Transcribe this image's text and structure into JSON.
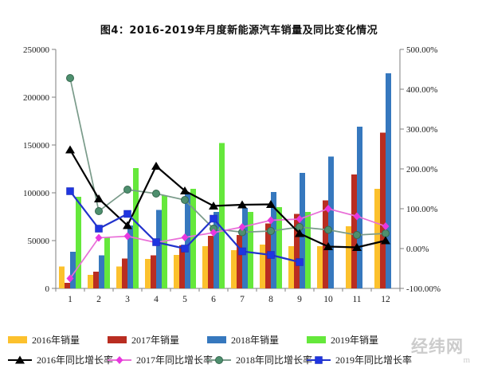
{
  "watermark": {
    "text": "经纬网",
    "suffix": "m"
  },
  "chart_data": {
    "type": "bar",
    "subtype": "grouped-bars-with-lines",
    "title": "图4：2016-2019年月度新能源汽车销量及同比变化情况",
    "categories": [
      "1",
      "2",
      "3",
      "4",
      "5",
      "6",
      "7",
      "8",
      "9",
      "10",
      "11",
      "12"
    ],
    "bar_series": [
      {
        "name": "2016年销量",
        "color": "#FCC12D",
        "values": [
          23000,
          14000,
          23000,
          31000,
          35000,
          44000,
          40000,
          46000,
          44000,
          44000,
          65000,
          104000
        ]
      },
      {
        "name": "2017年销量",
        "color": "#B92D21",
        "values": [
          5700,
          17600,
          31100,
          34400,
          45100,
          55000,
          56000,
          68000,
          78000,
          92000,
          119000,
          163000
        ]
      },
      {
        "name": "2018年销量",
        "color": "#3678BE",
        "values": [
          38500,
          34400,
          66000,
          82000,
          100000,
          80000,
          84000,
          101000,
          121000,
          138000,
          169000,
          225000
        ]
      },
      {
        "name": "2019年销量",
        "color": "#65E83B",
        "values": [
          95700,
          52900,
          126000,
          97000,
          104000,
          152000,
          80000,
          85000,
          80000,
          null,
          null,
          null
        ]
      }
    ],
    "line_series": [
      {
        "name": "2016年同比增长率",
        "color": "#000000",
        "line_color": "#000000",
        "marker": "triangle",
        "values": [
          248,
          125,
          58,
          207,
          145,
          107,
          110,
          111,
          38,
          5,
          3,
          20
        ]
      },
      {
        "name": "2017年同比增长率",
        "color": "#E838DE",
        "line_color": "#E96FD8",
        "marker": "diamond",
        "values": [
          -75,
          27,
          31,
          15,
          28,
          40,
          54,
          71,
          74,
          100,
          81,
          56
        ]
      },
      {
        "name": "2018年同比增长率",
        "color": "#4E8F6E",
        "line_color": "#7A9B8A",
        "marker": "circle",
        "values": [
          428,
          94,
          148,
          138,
          122,
          50,
          41,
          44,
          54,
          47,
          34,
          38
        ]
      },
      {
        "name": "2019年同比增长率",
        "color": "#1F35E0",
        "line_color": "#2233CC",
        "marker": "square",
        "values": [
          144,
          50,
          87,
          16,
          0,
          75,
          -7,
          -16,
          -34,
          null,
          null,
          null
        ]
      }
    ],
    "left_axis": {
      "min": 0,
      "max": 250000,
      "step": 50000,
      "tick_labels": [
        "0",
        "50000",
        "100000",
        "150000",
        "200000",
        "250000"
      ]
    },
    "right_axis": {
      "min": -100,
      "max": 500,
      "step": 100,
      "tick_labels": [
        "-100.00%",
        "0.00%",
        "100.00%",
        "200.00%",
        "300.00%",
        "400.00%",
        "500.00%"
      ]
    },
    "grid": false,
    "legend_position": "bottom"
  }
}
